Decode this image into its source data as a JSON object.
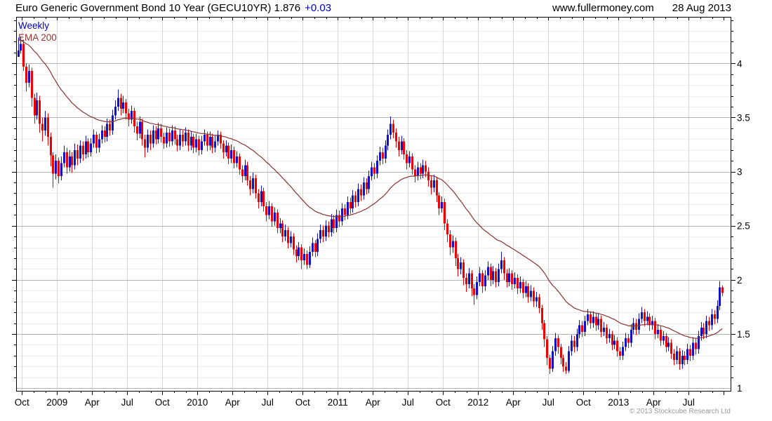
{
  "header": {
    "title": "Euro Generic Government Bond 10 Year (GECU10YR) 1.876",
    "change": "+0.03",
    "site": "www.fullermoney.com",
    "date": "28 Aug 2013"
  },
  "legend": {
    "timeframe": "Weekly",
    "overlay": "EMA 200"
  },
  "footer": {
    "copyright": "© 2013 Stockcube Research Ltd"
  },
  "chart_data": {
    "type": "candlestick",
    "title": "Euro Generic Government Bond 10 Year (GECU10YR)",
    "ticker": "GECU10YR",
    "timeframe": "Weekly",
    "last_price": 1.876,
    "change": 0.03,
    "overlay": {
      "label": "EMA 200",
      "period": 200,
      "alpha": 0.05,
      "init": 4.22
    },
    "yaxis": {
      "min": 0.975,
      "max": 4.43,
      "major_step": 0.5,
      "minor_step": 0.1,
      "ticks": [
        1,
        1.5,
        2,
        2.5,
        3,
        3.5,
        4
      ],
      "labels": [
        "1",
        "1.5",
        "2",
        "2.5",
        "3",
        "3.5",
        "4"
      ]
    },
    "xaxis": {
      "labels": [
        "Oct",
        "2009",
        "Apr",
        "Jul",
        "Oct",
        "2010",
        "Apr",
        "Jul",
        "Oct",
        "2011",
        "Apr",
        "Jul",
        "Oct",
        "2012",
        "Apr",
        "Jul",
        "Oct",
        "2013",
        "Apr",
        "Jul"
      ],
      "first_tick_week": 1.5,
      "weeks_per_tick": 13,
      "minor_per_quarter": 3
    },
    "colors": {
      "up": "#1111cc",
      "down": "#ee0000",
      "ema": "#8b3232",
      "grid_major": "#b3b3b3",
      "grid_minor": "#ededed",
      "grid_vertical": "#d8d8d8",
      "axis": "#000000",
      "accent_blue": "#0000cc",
      "accent_maroon": "#993333"
    },
    "candles_format": [
      "high",
      "low",
      "close"
    ],
    "open_rule": "open equals previous close",
    "first_open": 4.06,
    "candles": [
      [
        4.24,
        4.08,
        4.12
      ],
      [
        4.25,
        4.09,
        4.18
      ],
      [
        4.22,
        3.93,
        3.97
      ],
      [
        4.0,
        3.74,
        3.82
      ],
      [
        3.99,
        3.78,
        3.93
      ],
      [
        3.96,
        3.6,
        3.68
      ],
      [
        3.72,
        3.44,
        3.52
      ],
      [
        3.73,
        3.48,
        3.66
      ],
      [
        3.7,
        3.36,
        3.44
      ],
      [
        3.5,
        3.28,
        3.38
      ],
      [
        3.56,
        3.33,
        3.5
      ],
      [
        3.54,
        3.24,
        3.32
      ],
      [
        3.36,
        3.05,
        3.15
      ],
      [
        3.18,
        2.85,
        2.98
      ],
      [
        3.16,
        2.93,
        3.1
      ],
      [
        3.13,
        2.89,
        2.96
      ],
      [
        3.14,
        2.92,
        3.08
      ],
      [
        3.24,
        3.04,
        3.18
      ],
      [
        3.22,
        2.98,
        3.04
      ],
      [
        3.2,
        3.0,
        3.14
      ],
      [
        3.18,
        2.99,
        3.06
      ],
      [
        3.26,
        3.02,
        3.2
      ],
      [
        3.25,
        3.06,
        3.12
      ],
      [
        3.29,
        3.08,
        3.24
      ],
      [
        3.28,
        3.1,
        3.16
      ],
      [
        3.33,
        3.12,
        3.28
      ],
      [
        3.31,
        3.13,
        3.18
      ],
      [
        3.31,
        3.14,
        3.26
      ],
      [
        3.39,
        3.22,
        3.34
      ],
      [
        3.37,
        3.17,
        3.22
      ],
      [
        3.35,
        3.18,
        3.3
      ],
      [
        3.43,
        3.26,
        3.38
      ],
      [
        3.42,
        3.27,
        3.32
      ],
      [
        3.49,
        3.28,
        3.44
      ],
      [
        3.48,
        3.33,
        3.38
      ],
      [
        3.57,
        3.34,
        3.52
      ],
      [
        3.66,
        3.48,
        3.6
      ],
      [
        3.76,
        3.56,
        3.68
      ],
      [
        3.72,
        3.52,
        3.58
      ],
      [
        3.7,
        3.54,
        3.64
      ],
      [
        3.67,
        3.48,
        3.54
      ],
      [
        3.58,
        3.42,
        3.48
      ],
      [
        3.61,
        3.44,
        3.56
      ],
      [
        3.59,
        3.36,
        3.42
      ],
      [
        3.46,
        3.29,
        3.35
      ],
      [
        3.51,
        3.31,
        3.46
      ],
      [
        3.49,
        3.24,
        3.3
      ],
      [
        3.34,
        3.13,
        3.22
      ],
      [
        3.39,
        3.18,
        3.34
      ],
      [
        3.38,
        3.2,
        3.26
      ],
      [
        3.43,
        3.22,
        3.38
      ],
      [
        3.42,
        3.25,
        3.3
      ],
      [
        3.45,
        3.26,
        3.4
      ],
      [
        3.44,
        3.27,
        3.32
      ],
      [
        3.36,
        3.21,
        3.26
      ],
      [
        3.41,
        3.22,
        3.36
      ],
      [
        3.4,
        3.23,
        3.28
      ],
      [
        3.43,
        3.24,
        3.38
      ],
      [
        3.42,
        3.25,
        3.3
      ],
      [
        3.34,
        3.19,
        3.24
      ],
      [
        3.39,
        3.2,
        3.34
      ],
      [
        3.38,
        3.23,
        3.28
      ],
      [
        3.41,
        3.24,
        3.36
      ],
      [
        3.39,
        3.19,
        3.24
      ],
      [
        3.37,
        3.2,
        3.32
      ],
      [
        3.35,
        3.17,
        3.22
      ],
      [
        3.35,
        3.18,
        3.3
      ],
      [
        3.33,
        3.15,
        3.2
      ],
      [
        3.33,
        3.16,
        3.28
      ],
      [
        3.39,
        3.24,
        3.34
      ],
      [
        3.37,
        3.19,
        3.24
      ],
      [
        3.37,
        3.2,
        3.32
      ],
      [
        3.35,
        3.17,
        3.22
      ],
      [
        3.33,
        3.18,
        3.28
      ],
      [
        3.38,
        3.24,
        3.34
      ],
      [
        3.37,
        3.21,
        3.26
      ],
      [
        3.29,
        3.12,
        3.18
      ],
      [
        3.29,
        3.14,
        3.24
      ],
      [
        3.27,
        3.07,
        3.12
      ],
      [
        3.25,
        3.08,
        3.2
      ],
      [
        3.23,
        3.03,
        3.08
      ],
      [
        3.19,
        3.04,
        3.14
      ],
      [
        3.17,
        2.97,
        3.02
      ],
      [
        3.06,
        2.9,
        2.96
      ],
      [
        3.11,
        2.92,
        3.06
      ],
      [
        3.09,
        2.87,
        2.92
      ],
      [
        2.96,
        2.78,
        2.84
      ],
      [
        2.99,
        2.8,
        2.94
      ],
      [
        2.97,
        2.75,
        2.8
      ],
      [
        2.84,
        2.66,
        2.72
      ],
      [
        2.87,
        2.68,
        2.82
      ],
      [
        2.85,
        2.63,
        2.68
      ],
      [
        2.72,
        2.54,
        2.6
      ],
      [
        2.73,
        2.56,
        2.68
      ],
      [
        2.71,
        2.49,
        2.54
      ],
      [
        2.67,
        2.5,
        2.62
      ],
      [
        2.65,
        2.43,
        2.48
      ],
      [
        2.57,
        2.43,
        2.52
      ],
      [
        2.55,
        2.35,
        2.4
      ],
      [
        2.51,
        2.36,
        2.46
      ],
      [
        2.49,
        2.29,
        2.34
      ],
      [
        2.45,
        2.3,
        2.4
      ],
      [
        2.43,
        2.23,
        2.28
      ],
      [
        2.32,
        2.16,
        2.22
      ],
      [
        2.35,
        2.18,
        2.3
      ],
      [
        2.33,
        2.1,
        2.18
      ],
      [
        2.29,
        2.14,
        2.24
      ],
      [
        2.27,
        2.1,
        2.14
      ],
      [
        2.31,
        2.11,
        2.26
      ],
      [
        2.39,
        2.22,
        2.34
      ],
      [
        2.37,
        2.21,
        2.26
      ],
      [
        2.43,
        2.22,
        2.38
      ],
      [
        2.51,
        2.34,
        2.46
      ],
      [
        2.5,
        2.35,
        2.4
      ],
      [
        2.55,
        2.36,
        2.5
      ],
      [
        2.54,
        2.39,
        2.44
      ],
      [
        2.61,
        2.4,
        2.56
      ],
      [
        2.6,
        2.43,
        2.48
      ],
      [
        2.65,
        2.44,
        2.6
      ],
      [
        2.64,
        2.49,
        2.54
      ],
      [
        2.71,
        2.5,
        2.66
      ],
      [
        2.7,
        2.55,
        2.6
      ],
      [
        2.77,
        2.56,
        2.72
      ],
      [
        2.76,
        2.61,
        2.66
      ],
      [
        2.83,
        2.62,
        2.78
      ],
      [
        2.82,
        2.67,
        2.72
      ],
      [
        2.89,
        2.68,
        2.84
      ],
      [
        2.88,
        2.73,
        2.78
      ],
      [
        2.95,
        2.74,
        2.9
      ],
      [
        2.94,
        2.79,
        2.84
      ],
      [
        3.01,
        2.8,
        2.96
      ],
      [
        3.09,
        2.92,
        3.04
      ],
      [
        3.08,
        2.93,
        2.98
      ],
      [
        3.15,
        2.94,
        3.1
      ],
      [
        3.23,
        3.06,
        3.18
      ],
      [
        3.22,
        3.07,
        3.12
      ],
      [
        3.29,
        3.08,
        3.24
      ],
      [
        3.39,
        3.2,
        3.34
      ],
      [
        3.51,
        3.3,
        3.44
      ],
      [
        3.48,
        3.31,
        3.36
      ],
      [
        3.4,
        3.22,
        3.28
      ],
      [
        3.32,
        3.14,
        3.2
      ],
      [
        3.33,
        3.16,
        3.28
      ],
      [
        3.31,
        3.11,
        3.16
      ],
      [
        3.2,
        3.02,
        3.08
      ],
      [
        3.19,
        3.04,
        3.14
      ],
      [
        3.17,
        2.97,
        3.02
      ],
      [
        3.06,
        2.9,
        2.96
      ],
      [
        3.09,
        2.92,
        3.04
      ],
      [
        3.08,
        2.93,
        2.98
      ],
      [
        3.11,
        2.94,
        3.06
      ],
      [
        3.1,
        2.95,
        3.0
      ],
      [
        3.04,
        2.86,
        2.92
      ],
      [
        2.96,
        2.79,
        2.85
      ],
      [
        2.97,
        2.81,
        2.92
      ],
      [
        2.95,
        2.72,
        2.78
      ],
      [
        2.81,
        2.6,
        2.66
      ],
      [
        2.77,
        2.62,
        2.72
      ],
      [
        2.75,
        2.46,
        2.52
      ],
      [
        2.56,
        2.35,
        2.42
      ],
      [
        2.46,
        2.23,
        2.3
      ],
      [
        2.41,
        2.25,
        2.36
      ],
      [
        2.39,
        2.13,
        2.2
      ],
      [
        2.24,
        2.03,
        2.1
      ],
      [
        2.21,
        2.05,
        2.16
      ],
      [
        2.19,
        1.95,
        2.02
      ],
      [
        2.06,
        1.89,
        1.96
      ],
      [
        2.11,
        1.92,
        2.06
      ],
      [
        2.09,
        1.85,
        1.92
      ],
      [
        1.96,
        1.77,
        1.86
      ],
      [
        2.03,
        1.82,
        1.98
      ],
      [
        2.12,
        1.94,
        2.06
      ],
      [
        2.09,
        1.88,
        1.94
      ],
      [
        2.09,
        1.9,
        2.04
      ],
      [
        2.17,
        2.0,
        2.12
      ],
      [
        2.15,
        1.94,
        2.0
      ],
      [
        2.13,
        1.96,
        2.08
      ],
      [
        2.11,
        1.93,
        1.98
      ],
      [
        2.15,
        1.94,
        2.1
      ],
      [
        2.26,
        2.06,
        2.18
      ],
      [
        2.21,
        2.0,
        2.06
      ],
      [
        2.1,
        1.93,
        1.98
      ],
      [
        2.11,
        1.94,
        2.06
      ],
      [
        2.09,
        1.91,
        1.96
      ],
      [
        2.07,
        1.92,
        2.02
      ],
      [
        2.05,
        1.87,
        1.92
      ],
      [
        2.03,
        1.88,
        1.98
      ],
      [
        2.01,
        1.83,
        1.88
      ],
      [
        1.99,
        1.84,
        1.94
      ],
      [
        1.97,
        1.79,
        1.84
      ],
      [
        1.95,
        1.8,
        1.9
      ],
      [
        1.93,
        1.75,
        1.8
      ],
      [
        1.89,
        1.75,
        1.84
      ],
      [
        1.87,
        1.69,
        1.74
      ],
      [
        1.77,
        1.54,
        1.6
      ],
      [
        1.63,
        1.38,
        1.45
      ],
      [
        1.48,
        1.21,
        1.28
      ],
      [
        1.31,
        1.13,
        1.18
      ],
      [
        1.39,
        1.15,
        1.34
      ],
      [
        1.51,
        1.3,
        1.46
      ],
      [
        1.49,
        1.32,
        1.38
      ],
      [
        1.41,
        1.22,
        1.28
      ],
      [
        1.31,
        1.15,
        1.2
      ],
      [
        1.24,
        1.13,
        1.16
      ],
      [
        1.39,
        1.14,
        1.34
      ],
      [
        1.49,
        1.3,
        1.44
      ],
      [
        1.48,
        1.33,
        1.38
      ],
      [
        1.55,
        1.34,
        1.5
      ],
      [
        1.63,
        1.46,
        1.58
      ],
      [
        1.62,
        1.47,
        1.52
      ],
      [
        1.67,
        1.48,
        1.62
      ],
      [
        1.73,
        1.58,
        1.68
      ],
      [
        1.71,
        1.55,
        1.6
      ],
      [
        1.71,
        1.56,
        1.66
      ],
      [
        1.69,
        1.53,
        1.58
      ],
      [
        1.69,
        1.54,
        1.64
      ],
      [
        1.67,
        1.47,
        1.52
      ],
      [
        1.61,
        1.48,
        1.56
      ],
      [
        1.59,
        1.41,
        1.46
      ],
      [
        1.55,
        1.42,
        1.5
      ],
      [
        1.53,
        1.35,
        1.4
      ],
      [
        1.49,
        1.36,
        1.44
      ],
      [
        1.47,
        1.29,
        1.34
      ],
      [
        1.38,
        1.26,
        1.3
      ],
      [
        1.43,
        1.26,
        1.38
      ],
      [
        1.51,
        1.34,
        1.46
      ],
      [
        1.5,
        1.37,
        1.42
      ],
      [
        1.59,
        1.38,
        1.54
      ],
      [
        1.65,
        1.5,
        1.6
      ],
      [
        1.64,
        1.49,
        1.54
      ],
      [
        1.69,
        1.5,
        1.64
      ],
      [
        1.75,
        1.6,
        1.7
      ],
      [
        1.73,
        1.57,
        1.62
      ],
      [
        1.71,
        1.58,
        1.66
      ],
      [
        1.69,
        1.53,
        1.58
      ],
      [
        1.67,
        1.54,
        1.62
      ],
      [
        1.65,
        1.45,
        1.5
      ],
      [
        1.59,
        1.46,
        1.54
      ],
      [
        1.57,
        1.39,
        1.44
      ],
      [
        1.53,
        1.4,
        1.48
      ],
      [
        1.51,
        1.33,
        1.38
      ],
      [
        1.47,
        1.34,
        1.42
      ],
      [
        1.45,
        1.27,
        1.32
      ],
      [
        1.36,
        1.21,
        1.26
      ],
      [
        1.39,
        1.22,
        1.34
      ],
      [
        1.37,
        1.17,
        1.22
      ],
      [
        1.35,
        1.18,
        1.3
      ],
      [
        1.34,
        1.21,
        1.26
      ],
      [
        1.41,
        1.22,
        1.36
      ],
      [
        1.4,
        1.25,
        1.3
      ],
      [
        1.47,
        1.26,
        1.42
      ],
      [
        1.46,
        1.31,
        1.36
      ],
      [
        1.53,
        1.32,
        1.48
      ],
      [
        1.61,
        1.44,
        1.56
      ],
      [
        1.6,
        1.45,
        1.5
      ],
      [
        1.67,
        1.46,
        1.62
      ],
      [
        1.66,
        1.53,
        1.58
      ],
      [
        1.73,
        1.54,
        1.68
      ],
      [
        1.72,
        1.59,
        1.64
      ],
      [
        1.81,
        1.6,
        1.76
      ],
      [
        1.99,
        1.72,
        1.93
      ],
      [
        1.95,
        1.85,
        1.88
      ]
    ]
  }
}
